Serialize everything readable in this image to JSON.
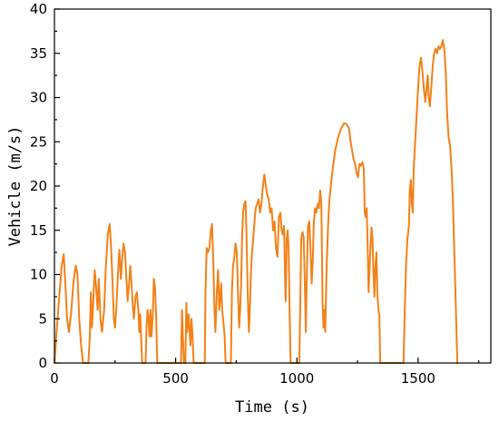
{
  "chart_data": {
    "type": "line",
    "title": "",
    "xlabel": "Time (s)",
    "ylabel": "Vehicle (m/s)",
    "xlim": [
      0,
      1800
    ],
    "ylim": [
      0,
      40
    ],
    "x_ticks": [
      0,
      500,
      1000,
      1500
    ],
    "y_ticks": [
      0,
      5,
      10,
      15,
      20,
      25,
      30,
      35,
      40
    ],
    "x_tick_labels": [
      "0",
      "500",
      "1000",
      "1500"
    ],
    "y_tick_labels": [
      "0",
      "5",
      "10",
      "15",
      "20",
      "25",
      "30",
      "35",
      "40"
    ],
    "grid": false,
    "legend": "none",
    "series": [
      {
        "color": "#F28118",
        "points": [
          [
            0,
            0
          ],
          [
            10,
            4
          ],
          [
            20,
            7.5
          ],
          [
            30,
            11
          ],
          [
            38,
            12.3
          ],
          [
            45,
            9
          ],
          [
            52,
            5
          ],
          [
            60,
            3.5
          ],
          [
            70,
            6
          ],
          [
            78,
            9
          ],
          [
            88,
            11
          ],
          [
            95,
            10
          ],
          [
            102,
            5
          ],
          [
            110,
            2
          ],
          [
            118,
            0
          ],
          [
            140,
            0
          ],
          [
            146,
            3
          ],
          [
            150,
            8
          ],
          [
            155,
            4
          ],
          [
            160,
            7
          ],
          [
            166,
            10.5
          ],
          [
            172,
            8.5
          ],
          [
            178,
            6
          ],
          [
            183,
            9.5
          ],
          [
            190,
            5
          ],
          [
            196,
            3.5
          ],
          [
            205,
            6
          ],
          [
            212,
            11
          ],
          [
            220,
            14.5
          ],
          [
            228,
            15.7
          ],
          [
            234,
            13
          ],
          [
            240,
            9
          ],
          [
            245,
            5
          ],
          [
            250,
            4
          ],
          [
            255,
            6
          ],
          [
            262,
            10
          ],
          [
            268,
            12.8
          ],
          [
            274,
            9.5
          ],
          [
            280,
            12
          ],
          [
            285,
            13.5
          ],
          [
            291,
            12.5
          ],
          [
            296,
            10
          ],
          [
            302,
            7
          ],
          [
            308,
            9
          ],
          [
            313,
            11
          ],
          [
            318,
            9
          ],
          [
            322,
            7
          ],
          [
            328,
            5
          ],
          [
            334,
            7.5
          ],
          [
            340,
            8
          ],
          [
            346,
            6
          ],
          [
            350,
            3.5
          ],
          [
            354,
            5.5
          ],
          [
            359,
            2
          ],
          [
            362,
            0
          ],
          [
            376,
            0
          ],
          [
            380,
            4
          ],
          [
            384,
            6
          ],
          [
            388,
            5
          ],
          [
            392,
            3
          ],
          [
            396,
            6
          ],
          [
            400,
            3
          ],
          [
            405,
            5
          ],
          [
            410,
            9.5
          ],
          [
            415,
            8.5
          ],
          [
            420,
            5
          ],
          [
            424,
            0
          ],
          [
            522,
            0
          ],
          [
            526,
            6
          ],
          [
            530,
            3
          ],
          [
            534,
            0
          ],
          [
            540,
            0
          ],
          [
            544,
            6.8
          ],
          [
            548,
            3.5
          ],
          [
            553,
            5.5
          ],
          [
            557,
            4
          ],
          [
            561,
            2
          ],
          [
            565,
            5
          ],
          [
            570,
            3
          ],
          [
            574,
            0
          ],
          [
            620,
            0
          ],
          [
            623,
            8
          ],
          [
            628,
            13
          ],
          [
            633,
            12.5
          ],
          [
            639,
            13
          ],
          [
            645,
            15
          ],
          [
            650,
            15.7
          ],
          [
            655,
            12
          ],
          [
            660,
            6
          ],
          [
            664,
            3.5
          ],
          [
            670,
            8
          ],
          [
            675,
            10.5
          ],
          [
            680,
            6
          ],
          [
            684,
            7.5
          ],
          [
            688,
            9
          ],
          [
            692,
            6
          ],
          [
            697,
            4.5
          ],
          [
            702,
            3
          ],
          [
            706,
            0
          ],
          [
            728,
            0
          ],
          [
            732,
            8
          ],
          [
            737,
            11
          ],
          [
            742,
            12
          ],
          [
            747,
            13.5
          ],
          [
            752,
            12.5
          ],
          [
            757,
            8
          ],
          [
            762,
            4
          ],
          [
            766,
            6
          ],
          [
            770,
            9
          ],
          [
            774,
            14
          ],
          [
            778,
            17
          ],
          [
            783,
            18
          ],
          [
            788,
            18.3
          ],
          [
            792,
            15
          ],
          [
            797,
            8
          ],
          [
            802,
            3.5
          ],
          [
            806,
            6
          ],
          [
            810,
            10
          ],
          [
            815,
            12.5
          ],
          [
            820,
            14
          ],
          [
            825,
            16
          ],
          [
            830,
            17.5
          ],
          [
            836,
            18
          ],
          [
            842,
            18.5
          ],
          [
            848,
            17
          ],
          [
            854,
            18
          ],
          [
            860,
            20
          ],
          [
            866,
            21.3
          ],
          [
            872,
            20
          ],
          [
            878,
            19
          ],
          [
            884,
            18.5
          ],
          [
            890,
            17
          ],
          [
            896,
            17.5
          ],
          [
            902,
            15
          ],
          [
            908,
            16
          ],
          [
            914,
            13
          ],
          [
            920,
            12
          ],
          [
            926,
            16.5
          ],
          [
            932,
            17
          ],
          [
            937,
            15
          ],
          [
            942,
            14.5
          ],
          [
            947,
            15.5
          ],
          [
            951,
            10
          ],
          [
            954,
            7
          ],
          [
            958,
            14
          ],
          [
            962,
            15
          ],
          [
            966,
            13
          ],
          [
            970,
            6
          ],
          [
            974,
            0
          ],
          [
            1010,
            0
          ],
          [
            1014,
            7
          ],
          [
            1018,
            14
          ],
          [
            1023,
            14.8
          ],
          [
            1028,
            14.2
          ],
          [
            1033,
            9
          ],
          [
            1037,
            3.5
          ],
          [
            1041,
            10
          ],
          [
            1046,
            15.5
          ],
          [
            1051,
            16
          ],
          [
            1056,
            13
          ],
          [
            1061,
            9
          ],
          [
            1066,
            12
          ],
          [
            1070,
            16
          ],
          [
            1075,
            17.5
          ],
          [
            1080,
            17
          ],
          [
            1086,
            18
          ],
          [
            1091,
            17.5
          ],
          [
            1096,
            19.5
          ],
          [
            1101,
            18
          ],
          [
            1106,
            7
          ],
          [
            1110,
            4
          ],
          [
            1113,
            6
          ],
          [
            1117,
            3.5
          ],
          [
            1122,
            10
          ],
          [
            1128,
            15
          ],
          [
            1133,
            18
          ],
          [
            1140,
            20
          ],
          [
            1148,
            22
          ],
          [
            1158,
            24
          ],
          [
            1170,
            25.5
          ],
          [
            1182,
            26.5
          ],
          [
            1195,
            27.1
          ],
          [
            1205,
            27
          ],
          [
            1215,
            26.5
          ],
          [
            1222,
            25
          ],
          [
            1228,
            24
          ],
          [
            1234,
            23
          ],
          [
            1240,
            22.5
          ],
          [
            1246,
            21.5
          ],
          [
            1252,
            21
          ],
          [
            1258,
            22.5
          ],
          [
            1264,
            22.3
          ],
          [
            1270,
            22.7
          ],
          [
            1276,
            22
          ],
          [
            1280,
            17
          ],
          [
            1284,
            16.5
          ],
          [
            1288,
            17.5
          ],
          [
            1292,
            13
          ],
          [
            1296,
            8
          ],
          [
            1300,
            11
          ],
          [
            1304,
            13.5
          ],
          [
            1308,
            15.3
          ],
          [
            1312,
            14
          ],
          [
            1316,
            10
          ],
          [
            1320,
            7.5
          ],
          [
            1324,
            11
          ],
          [
            1328,
            12.5
          ],
          [
            1332,
            8
          ],
          [
            1336,
            6
          ],
          [
            1340,
            5.5
          ],
          [
            1344,
            0
          ],
          [
            1440,
            0
          ],
          [
            1444,
            5
          ],
          [
            1450,
            11
          ],
          [
            1456,
            14
          ],
          [
            1462,
            15.5
          ],
          [
            1466,
            19.5
          ],
          [
            1470,
            20.7
          ],
          [
            1474,
            18
          ],
          [
            1478,
            17
          ],
          [
            1482,
            22
          ],
          [
            1488,
            25
          ],
          [
            1494,
            28
          ],
          [
            1500,
            31
          ],
          [
            1506,
            33.5
          ],
          [
            1512,
            34.5
          ],
          [
            1518,
            33
          ],
          [
            1524,
            31
          ],
          [
            1530,
            29.5
          ],
          [
            1536,
            31.5
          ],
          [
            1540,
            32.5
          ],
          [
            1544,
            30
          ],
          [
            1548,
            29
          ],
          [
            1554,
            31
          ],
          [
            1560,
            33.5
          ],
          [
            1566,
            35
          ],
          [
            1572,
            35.5
          ],
          [
            1578,
            35
          ],
          [
            1584,
            35.8
          ],
          [
            1590,
            35.5
          ],
          [
            1596,
            35.8
          ],
          [
            1602,
            36.5
          ],
          [
            1608,
            35.5
          ],
          [
            1614,
            33
          ],
          [
            1620,
            28
          ],
          [
            1626,
            25.5
          ],
          [
            1632,
            24.5
          ],
          [
            1638,
            22
          ],
          [
            1644,
            18
          ],
          [
            1650,
            12
          ],
          [
            1656,
            6
          ],
          [
            1662,
            0
          ]
        ]
      }
    ]
  }
}
